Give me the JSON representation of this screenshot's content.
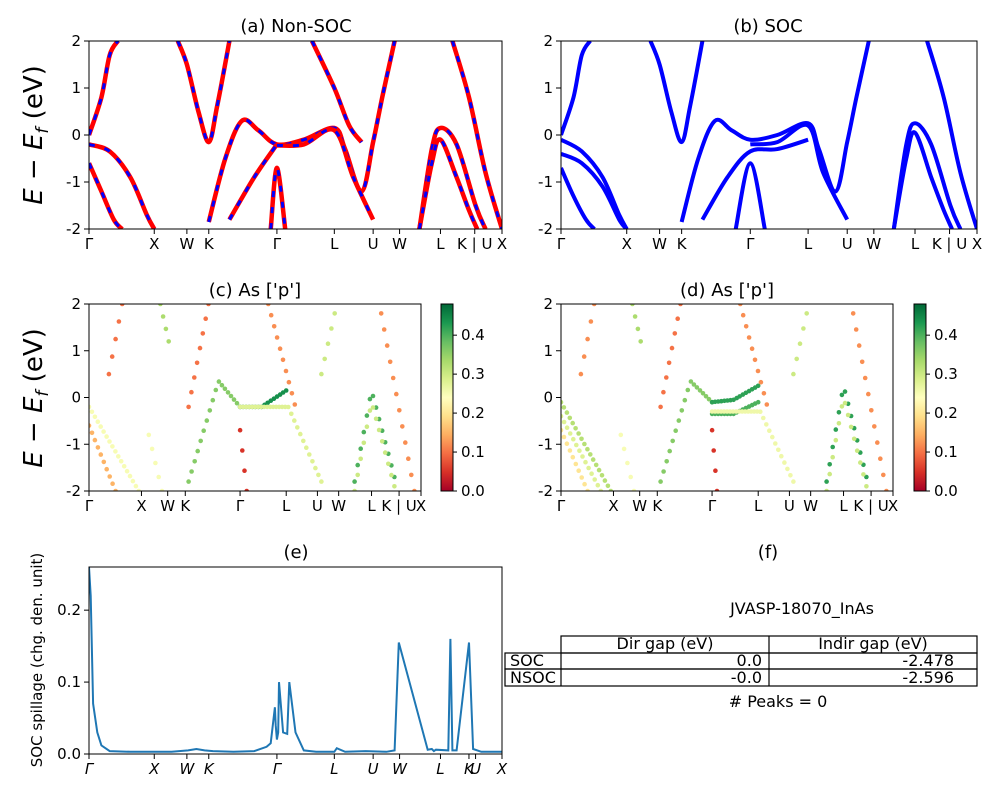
{
  "kpath": {
    "labels": [
      "Γ",
      "X",
      "W",
      "K",
      "Γ",
      "L",
      "U",
      "W",
      "L",
      "K | U",
      "X"
    ],
    "spillage_labels": [
      "Γ",
      "X",
      "W",
      "K",
      "Γ",
      "L",
      "U",
      "W",
      "L",
      "K",
      "U",
      "X"
    ],
    "positions": [
      0,
      0.158,
      0.237,
      0.29,
      0.455,
      0.594,
      0.688,
      0.752,
      0.851,
      0.92,
      0.936,
      1.0
    ]
  },
  "colors": {
    "nonsoc_red": "#ff0000",
    "nonsoc_blue": "#0000ff",
    "soc_blue": "#0000ff",
    "spillage_line": "#1f77b4"
  },
  "chart_data": [
    {
      "id": "a",
      "type": "line",
      "title": "(a) Non-SOC",
      "ylabel": "E − E_f (eV)",
      "ylim": [
        -2,
        2
      ],
      "yticks": [
        -2,
        -1,
        0,
        1,
        2
      ],
      "series": [
        {
          "x": [
            0,
            0.03,
            0.05,
            0.07
          ],
          "y": [
            0,
            0.8,
            1.7,
            2.0
          ]
        },
        {
          "x": [
            0,
            0.05,
            0.1,
            0.14,
            0.158
          ],
          "y": [
            -0.2,
            -0.35,
            -0.9,
            -1.7,
            -2.0
          ]
        },
        {
          "x": [
            0,
            0.03,
            0.06,
            0.08
          ],
          "y": [
            -0.6,
            -1.2,
            -1.8,
            -2.0
          ]
        },
        {
          "x": [
            0.215,
            0.237,
            0.265,
            0.29,
            0.31,
            0.34
          ],
          "y": [
            2.0,
            1.5,
            0.5,
            -0.15,
            0.6,
            2.0
          ]
        },
        {
          "x": [
            0.29,
            0.33,
            0.37,
            0.41,
            0.455,
            0.52,
            0.594,
            0.62,
            0.66,
            0.688,
            0.71,
            0.74
          ],
          "y": [
            -1.85,
            -0.5,
            0.3,
            0.1,
            -0.2,
            -0.1,
            0.15,
            -0.3,
            -1.2,
            -0.15,
            0.8,
            2.0
          ]
        },
        {
          "x": [
            0.34,
            0.4,
            0.455
          ],
          "y": [
            -1.8,
            -0.9,
            -0.2
          ]
        },
        {
          "x": [
            0.44,
            0.455,
            0.475
          ],
          "y": [
            -2.0,
            -0.7,
            -2.0
          ]
        },
        {
          "x": [
            0.455,
            0.52,
            0.594,
            0.64,
            0.688
          ],
          "y": [
            -0.22,
            -0.2,
            0.1,
            -0.9,
            -1.8
          ]
        },
        {
          "x": [
            0.54,
            0.594,
            0.63,
            0.66
          ],
          "y": [
            2.0,
            1.0,
            0.2,
            -0.15
          ]
        },
        {
          "x": [
            0.8,
            0.83,
            0.851,
            0.89,
            0.936,
            0.96
          ],
          "y": [
            -2.0,
            -0.3,
            0.15,
            -0.2,
            -1.5,
            -2.0
          ]
        },
        {
          "x": [
            0.8,
            0.83,
            0.851,
            0.89,
            0.92,
            0.94
          ],
          "y": [
            -2.0,
            -0.6,
            -0.1,
            -0.9,
            -1.6,
            -2.0
          ]
        },
        {
          "x": [
            0.88,
            0.92,
            0.96,
            1.0
          ],
          "y": [
            2.0,
            0.8,
            -0.8,
            -2.0
          ]
        }
      ]
    },
    {
      "id": "b",
      "type": "line",
      "title": "(b) SOC",
      "ylim": [
        -2,
        2
      ],
      "yticks": [
        -2,
        -1,
        0,
        1,
        2
      ],
      "series": [
        {
          "x": [
            0,
            0.03,
            0.05,
            0.07
          ],
          "y": [
            0,
            0.8,
            1.7,
            2.0
          ]
        },
        {
          "x": [
            0,
            0.05,
            0.1,
            0.14,
            0.158
          ],
          "y": [
            -0.1,
            -0.35,
            -0.9,
            -1.7,
            -2.0
          ]
        },
        {
          "x": [
            0,
            0.05,
            0.1,
            0.14,
            0.158
          ],
          "y": [
            -0.4,
            -0.6,
            -1.1,
            -1.8,
            -2.0
          ]
        },
        {
          "x": [
            0,
            0.03,
            0.06,
            0.08
          ],
          "y": [
            -0.7,
            -1.3,
            -1.8,
            -2.0
          ]
        },
        {
          "x": [
            0.215,
            0.237,
            0.265,
            0.29,
            0.31,
            0.34
          ],
          "y": [
            2.0,
            1.5,
            0.5,
            -0.15,
            0.6,
            2.0
          ]
        },
        {
          "x": [
            0.29,
            0.33,
            0.37,
            0.41,
            0.455,
            0.52,
            0.594,
            0.62,
            0.66,
            0.688,
            0.71,
            0.74
          ],
          "y": [
            -1.85,
            -0.5,
            0.3,
            0.1,
            -0.1,
            0.0,
            0.25,
            -0.3,
            -1.2,
            -0.15,
            0.8,
            2.0
          ]
        },
        {
          "x": [
            0.455,
            0.52,
            0.594,
            0.63,
            0.688
          ],
          "y": [
            -0.2,
            -0.15,
            0.2,
            -0.8,
            -1.8
          ]
        },
        {
          "x": [
            0.34,
            0.4,
            0.455,
            0.52,
            0.594
          ],
          "y": [
            -1.8,
            -0.9,
            -0.35,
            -0.3,
            -0.1
          ]
        },
        {
          "x": [
            0.42,
            0.455,
            0.49
          ],
          "y": [
            -2.0,
            -0.6,
            -2.0
          ]
        },
        {
          "x": [
            0.8,
            0.83,
            0.851,
            0.89,
            0.936,
            0.96
          ],
          "y": [
            -2.0,
            -0.2,
            0.25,
            -0.2,
            -1.5,
            -2.0
          ]
        },
        {
          "x": [
            0.8,
            0.83,
            0.851,
            0.89,
            0.92,
            0.94
          ],
          "y": [
            -2.0,
            -0.5,
            0.05,
            -0.9,
            -1.6,
            -2.0
          ]
        },
        {
          "x": [
            0.88,
            0.92,
            0.96,
            1.0
          ],
          "y": [
            2.0,
            0.8,
            -0.8,
            -2.0
          ]
        }
      ]
    },
    {
      "id": "c",
      "type": "scatter",
      "title": "(c)  As ['p']",
      "ylabel": "E − E_f (eV)",
      "ylim": [
        -2,
        2
      ],
      "yticks": [
        -2,
        -1,
        0,
        1,
        2
      ],
      "colorbar": {
        "range": [
          0.0,
          0.48
        ],
        "ticks": [
          "0.0",
          "0.1",
          "0.2",
          "0.3",
          "0.4"
        ],
        "tick_values": [
          0,
          0.1,
          0.2,
          0.3,
          0.4
        ]
      },
      "series": [
        {
          "x": [
            0.0,
            0.15
          ],
          "y": [
            -0.2,
            -2.0
          ],
          "w": 0.25
        },
        {
          "x": [
            0.0,
            0.08
          ],
          "y": [
            -0.6,
            -2.0
          ],
          "w": 0.15
        },
        {
          "x": [
            0.06,
            0.1
          ],
          "y": [
            0.5,
            2.0
          ],
          "w": 0.1
        },
        {
          "x": [
            0.18,
            0.22
          ],
          "y": [
            -0.8,
            -2.0
          ],
          "w": 0.25
        },
        {
          "x": [
            0.215,
            0.24
          ],
          "y": [
            2.0,
            1.2
          ],
          "w": 0.33
        },
        {
          "x": [
            0.3,
            0.39,
            0.455
          ],
          "y": [
            -1.8,
            0.35,
            -0.2
          ],
          "w": 0.36
        },
        {
          "x": [
            0.3,
            0.36
          ],
          "y": [
            -0.2,
            2.0
          ],
          "w": 0.1
        },
        {
          "x": [
            0.455,
            0.52,
            0.594
          ],
          "y": [
            -0.2,
            -0.2,
            0.15
          ],
          "w": 0.44
        },
        {
          "x": [
            0.455,
            0.475
          ],
          "y": [
            -0.7,
            -2.0
          ],
          "w": 0.05
        },
        {
          "x": [
            0.455,
            0.6,
            0.7
          ],
          "y": [
            -0.2,
            -0.2,
            -1.8
          ],
          "w": 0.28
        },
        {
          "x": [
            0.54,
            0.62
          ],
          "y": [
            2.0,
            -0.15
          ],
          "w": 0.12
        },
        {
          "x": [
            0.7,
            0.74
          ],
          "y": [
            0.5,
            1.8
          ],
          "w": 0.3
        },
        {
          "x": [
            0.8,
            0.851,
            0.92
          ],
          "y": [
            -1.8,
            0.15,
            -1.7
          ],
          "w": 0.4
        },
        {
          "x": [
            0.8,
            0.851,
            0.92
          ],
          "y": [
            -2.0,
            -0.1,
            -1.9
          ],
          "w": 0.3
        },
        {
          "x": [
            0.88,
            0.98
          ],
          "y": [
            1.8,
            -2.0
          ],
          "w": 0.12
        }
      ]
    },
    {
      "id": "d",
      "type": "scatter",
      "title": "(d) As ['p']",
      "ylim": [
        -2,
        2
      ],
      "yticks": [
        -2,
        -1,
        0,
        1,
        2
      ],
      "colorbar": {
        "range": [
          0.0,
          0.48
        ],
        "ticks": [
          "0.0",
          "0.1",
          "0.2",
          "0.3",
          "0.4"
        ],
        "tick_values": [
          0,
          0.1,
          0.2,
          0.3,
          0.4
        ]
      },
      "series": [
        {
          "x": [
            0.0,
            0.15
          ],
          "y": [
            -0.1,
            -2.0
          ],
          "w": 0.32
        },
        {
          "x": [
            0.0,
            0.12
          ],
          "y": [
            -0.4,
            -2.0
          ],
          "w": 0.28
        },
        {
          "x": [
            0.0,
            0.08
          ],
          "y": [
            -0.7,
            -2.0
          ],
          "w": 0.2
        },
        {
          "x": [
            0.06,
            0.1
          ],
          "y": [
            0.5,
            2.0
          ],
          "w": 0.12
        },
        {
          "x": [
            0.18,
            0.22
          ],
          "y": [
            -0.8,
            -2.0
          ],
          "w": 0.25
        },
        {
          "x": [
            0.215,
            0.24
          ],
          "y": [
            2.0,
            1.2
          ],
          "w": 0.33
        },
        {
          "x": [
            0.3,
            0.39,
            0.455
          ],
          "y": [
            -1.8,
            0.35,
            -0.1
          ],
          "w": 0.36
        },
        {
          "x": [
            0.3,
            0.36
          ],
          "y": [
            -0.2,
            2.0
          ],
          "w": 0.1
        },
        {
          "x": [
            0.455,
            0.52,
            0.594
          ],
          "y": [
            -0.1,
            -0.05,
            0.25
          ],
          "w": 0.42
        },
        {
          "x": [
            0.455,
            0.52,
            0.594
          ],
          "y": [
            -0.35,
            -0.35,
            -0.1
          ],
          "w": 0.4
        },
        {
          "x": [
            0.455,
            0.47
          ],
          "y": [
            -0.7,
            -2.0
          ],
          "w": 0.05
        },
        {
          "x": [
            0.455,
            0.6,
            0.7
          ],
          "y": [
            -0.3,
            -0.3,
            -1.8
          ],
          "w": 0.26
        },
        {
          "x": [
            0.54,
            0.62
          ],
          "y": [
            2.0,
            -0.15
          ],
          "w": 0.12
        },
        {
          "x": [
            0.7,
            0.74
          ],
          "y": [
            0.5,
            1.8
          ],
          "w": 0.3
        },
        {
          "x": [
            0.8,
            0.851,
            0.92
          ],
          "y": [
            -1.8,
            0.25,
            -1.7
          ],
          "w": 0.42
        },
        {
          "x": [
            0.8,
            0.851,
            0.92
          ],
          "y": [
            -2.0,
            0.0,
            -1.9
          ],
          "w": 0.3
        },
        {
          "x": [
            0.88,
            0.98
          ],
          "y": [
            1.8,
            -2.0
          ],
          "w": 0.12
        }
      ]
    },
    {
      "id": "e",
      "type": "line",
      "title": "(e)",
      "ylabel": "SOC spillage (chg. den. unit)",
      "ylim": [
        0,
        0.26
      ],
      "yticks": [
        0.0,
        0.1,
        0.2
      ],
      "ytick_labels": [
        "0.0",
        "0.1",
        "0.2"
      ],
      "x": [
        0.0,
        0.004,
        0.01,
        0.02,
        0.03,
        0.05,
        0.1,
        0.2,
        0.24,
        0.26,
        0.28,
        0.3,
        0.35,
        0.4,
        0.43,
        0.44,
        0.45,
        0.452,
        0.455,
        0.458,
        0.46,
        0.47,
        0.48,
        0.485,
        0.5,
        0.52,
        0.55,
        0.594,
        0.6,
        0.62,
        0.67,
        0.72,
        0.74,
        0.75,
        0.82,
        0.83,
        0.835,
        0.84,
        0.87,
        0.875,
        0.88,
        0.89,
        0.92,
        0.93,
        0.95,
        1.0
      ],
      "values": [
        0.26,
        0.22,
        0.07,
        0.03,
        0.012,
        0.004,
        0.003,
        0.003,
        0.005,
        0.007,
        0.005,
        0.004,
        0.003,
        0.004,
        0.01,
        0.015,
        0.065,
        0.04,
        0.02,
        0.03,
        0.1,
        0.03,
        0.028,
        0.1,
        0.03,
        0.005,
        0.003,
        0.003,
        0.008,
        0.003,
        0.004,
        0.003,
        0.005,
        0.155,
        0.006,
        0.007,
        0.004,
        0.006,
        0.005,
        0.16,
        0.005,
        0.005,
        0.155,
        0.007,
        0.003,
        0.003
      ]
    },
    {
      "id": "f",
      "type": "table",
      "title": "(f)",
      "subtitle": "JVASP-18070_InAs",
      "columns": [
        "",
        "Dir gap (eV)",
        "Indir gap (eV)"
      ],
      "rows": [
        {
          "label": "SOC",
          "dir": "0.0",
          "indir": "-2.478"
        },
        {
          "label": "NSOC",
          "dir": "-0.0",
          "indir": "-2.596"
        }
      ],
      "footer": "# Peaks = 0"
    }
  ]
}
